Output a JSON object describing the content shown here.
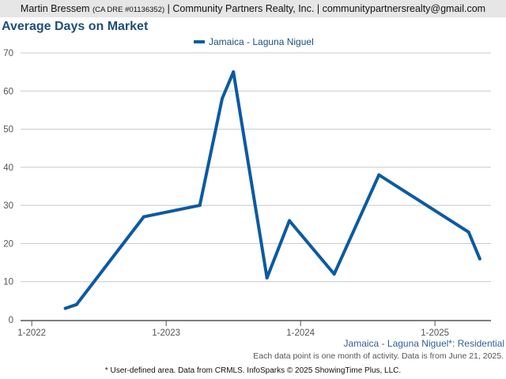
{
  "header": {
    "agent_name": "Martin Bressem",
    "license": "(CA DRE #01136352)",
    "separator": "|",
    "company": "Community Partners Realty, Inc.",
    "email": "communitypartnersrealty@gmail.com"
  },
  "chart_data": {
    "type": "line",
    "title": "Average Days on Market",
    "xlabel": "",
    "ylabel": "",
    "ylim": [
      0,
      70
    ],
    "yticks": [
      "0",
      "10",
      "20",
      "30",
      "40",
      "50",
      "60",
      "70"
    ],
    "xticks": [
      {
        "label": "1-2022",
        "month": "2022-01"
      },
      {
        "label": "1-2023",
        "month": "2023-01"
      },
      {
        "label": "1-2024",
        "month": "2024-01"
      },
      {
        "label": "1-2025",
        "month": "2025-01"
      }
    ],
    "grid": true,
    "legend_position": "top-center",
    "series": [
      {
        "name": "Jamaica - Laguna Niguel",
        "color": "#0b5aa3",
        "points": [
          {
            "x": "2022-04",
            "y": 3
          },
          {
            "x": "2022-05",
            "y": 4
          },
          {
            "x": "2022-11",
            "y": 27
          },
          {
            "x": "2023-04",
            "y": 30
          },
          {
            "x": "2023-06",
            "y": 58
          },
          {
            "x": "2023-07",
            "y": 65
          },
          {
            "x": "2023-10",
            "y": 11
          },
          {
            "x": "2023-12",
            "y": 26
          },
          {
            "x": "2024-04",
            "y": 12
          },
          {
            "x": "2024-08",
            "y": 38
          },
          {
            "x": "2025-04",
            "y": 23
          },
          {
            "x": "2025-05",
            "y": 16
          }
        ]
      }
    ]
  },
  "area_label": "Jamaica - Laguna Niguel*: Residential",
  "source_note": "Each data point is one month of activity. Data is from June 21, 2025.",
  "footer_note": "* User-defined area. Data from CRMLS. InfoSparks © 2025 ShowingTime Plus, LLC."
}
